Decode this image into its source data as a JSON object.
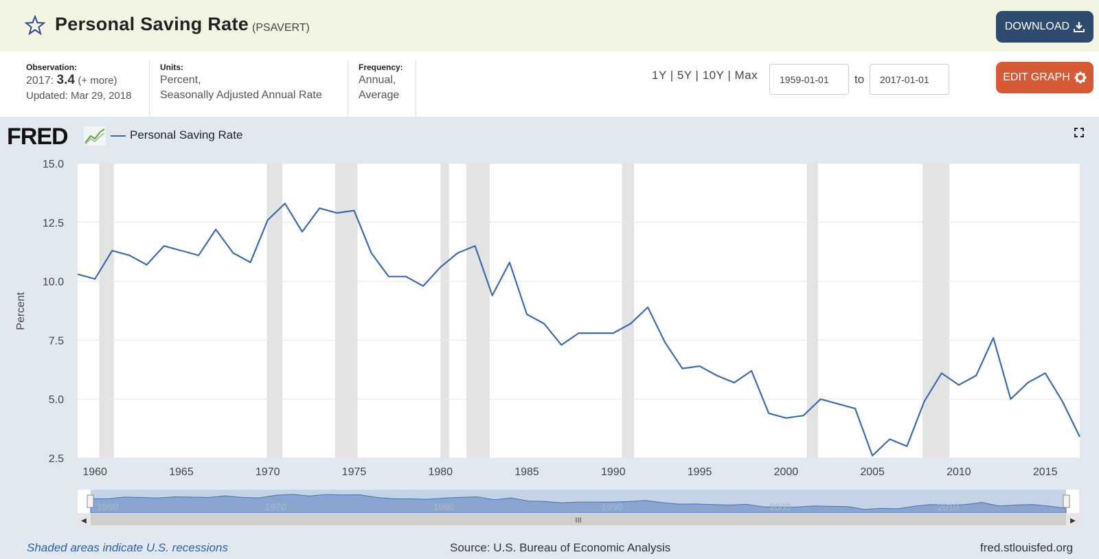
{
  "header": {
    "title": "Personal Saving Rate",
    "series_id": "(PSAVERT)",
    "download_label": "DOWNLOAD",
    "edit_label": "EDIT GRAPH"
  },
  "info": {
    "observation_label": "Observation:",
    "observation_year": "2017:",
    "observation_value": "3.4",
    "observation_more": "(+ more)",
    "updated": "Updated: Mar 29, 2018",
    "units_label": "Units:",
    "units_line1": "Percent,",
    "units_line2": "Seasonally Adjusted Annual Rate",
    "frequency_label": "Frequency:",
    "frequency_line1": "Annual,",
    "frequency_line2": "Average"
  },
  "range": {
    "shortcuts": "1Y | 5Y | 10Y | Max",
    "start": "1959-01-01",
    "to_label": "to",
    "end": "2017-01-01"
  },
  "chart_header": {
    "logo": "FRED",
    "legend": "Personal Saving Rate"
  },
  "footer": {
    "recessions": "Shaded areas indicate U.S. recessions",
    "source": "Source: U.S. Bureau of Economic Analysis",
    "site": "fred.stlouisfed.org"
  },
  "colors": {
    "series": "#3d6aa8",
    "download": "#2e4a6e",
    "edit": "#d65a35",
    "header_bg": "#f4f4e4",
    "panel_bg": "#e1e8ef",
    "recession": "#e3e3e3"
  },
  "icons": {
    "favorite": "star-icon",
    "download": "download-icon",
    "edit": "gear-icon",
    "fullscreen": "fullscreen-icon"
  },
  "chart_data": {
    "type": "line",
    "title": "",
    "ylabel": "Percent",
    "xlabel": "",
    "xlim": [
      1959,
      2017
    ],
    "ylim": [
      2.5,
      15
    ],
    "y_ticks": [
      "2.5",
      "5.0",
      "7.5",
      "10.0",
      "12.5",
      "15.0"
    ],
    "x_ticks": [
      "1960",
      "1965",
      "1970",
      "1975",
      "1980",
      "1985",
      "1990",
      "1995",
      "2000",
      "2005",
      "2010",
      "2015"
    ],
    "navigator_ticks": [
      "1960",
      "1970",
      "1980",
      "1990",
      "2000",
      "2010"
    ],
    "grid": true,
    "legend": "top-left",
    "recessions": [
      [
        1960.25,
        1961.1
      ],
      [
        1969.95,
        1970.85
      ],
      [
        1973.9,
        1975.2
      ],
      [
        1980.0,
        1980.5
      ],
      [
        1981.5,
        1982.85
      ],
      [
        1990.5,
        1991.2
      ],
      [
        2001.2,
        2001.85
      ],
      [
        2007.9,
        2009.45
      ]
    ],
    "series": [
      {
        "name": "Personal Saving Rate",
        "x": [
          1959,
          1960,
          1961,
          1962,
          1963,
          1964,
          1965,
          1966,
          1967,
          1968,
          1969,
          1970,
          1971,
          1972,
          1973,
          1974,
          1975,
          1976,
          1977,
          1978,
          1979,
          1980,
          1981,
          1982,
          1983,
          1984,
          1985,
          1986,
          1987,
          1988,
          1989,
          1990,
          1991,
          1992,
          1993,
          1994,
          1995,
          1996,
          1997,
          1998,
          1999,
          2000,
          2001,
          2002,
          2003,
          2004,
          2005,
          2006,
          2007,
          2008,
          2009,
          2010,
          2011,
          2012,
          2013,
          2014,
          2015,
          2016,
          2017
        ],
        "values": [
          10.3,
          10.1,
          11.3,
          11.1,
          10.7,
          11.5,
          11.3,
          11.1,
          12.2,
          11.2,
          10.8,
          12.6,
          13.3,
          12.1,
          13.1,
          12.9,
          13.0,
          11.2,
          10.2,
          10.2,
          9.8,
          10.6,
          11.2,
          11.5,
          9.4,
          10.8,
          8.6,
          8.2,
          7.3,
          7.8,
          7.8,
          7.8,
          8.2,
          8.9,
          7.4,
          6.3,
          6.4,
          6.0,
          5.7,
          6.2,
          4.4,
          4.2,
          4.3,
          5.0,
          4.8,
          4.6,
          2.6,
          3.3,
          3.0,
          4.9,
          6.1,
          5.6,
          6.0,
          7.6,
          5.0,
          5.7,
          6.1,
          4.9,
          3.4
        ]
      }
    ]
  }
}
